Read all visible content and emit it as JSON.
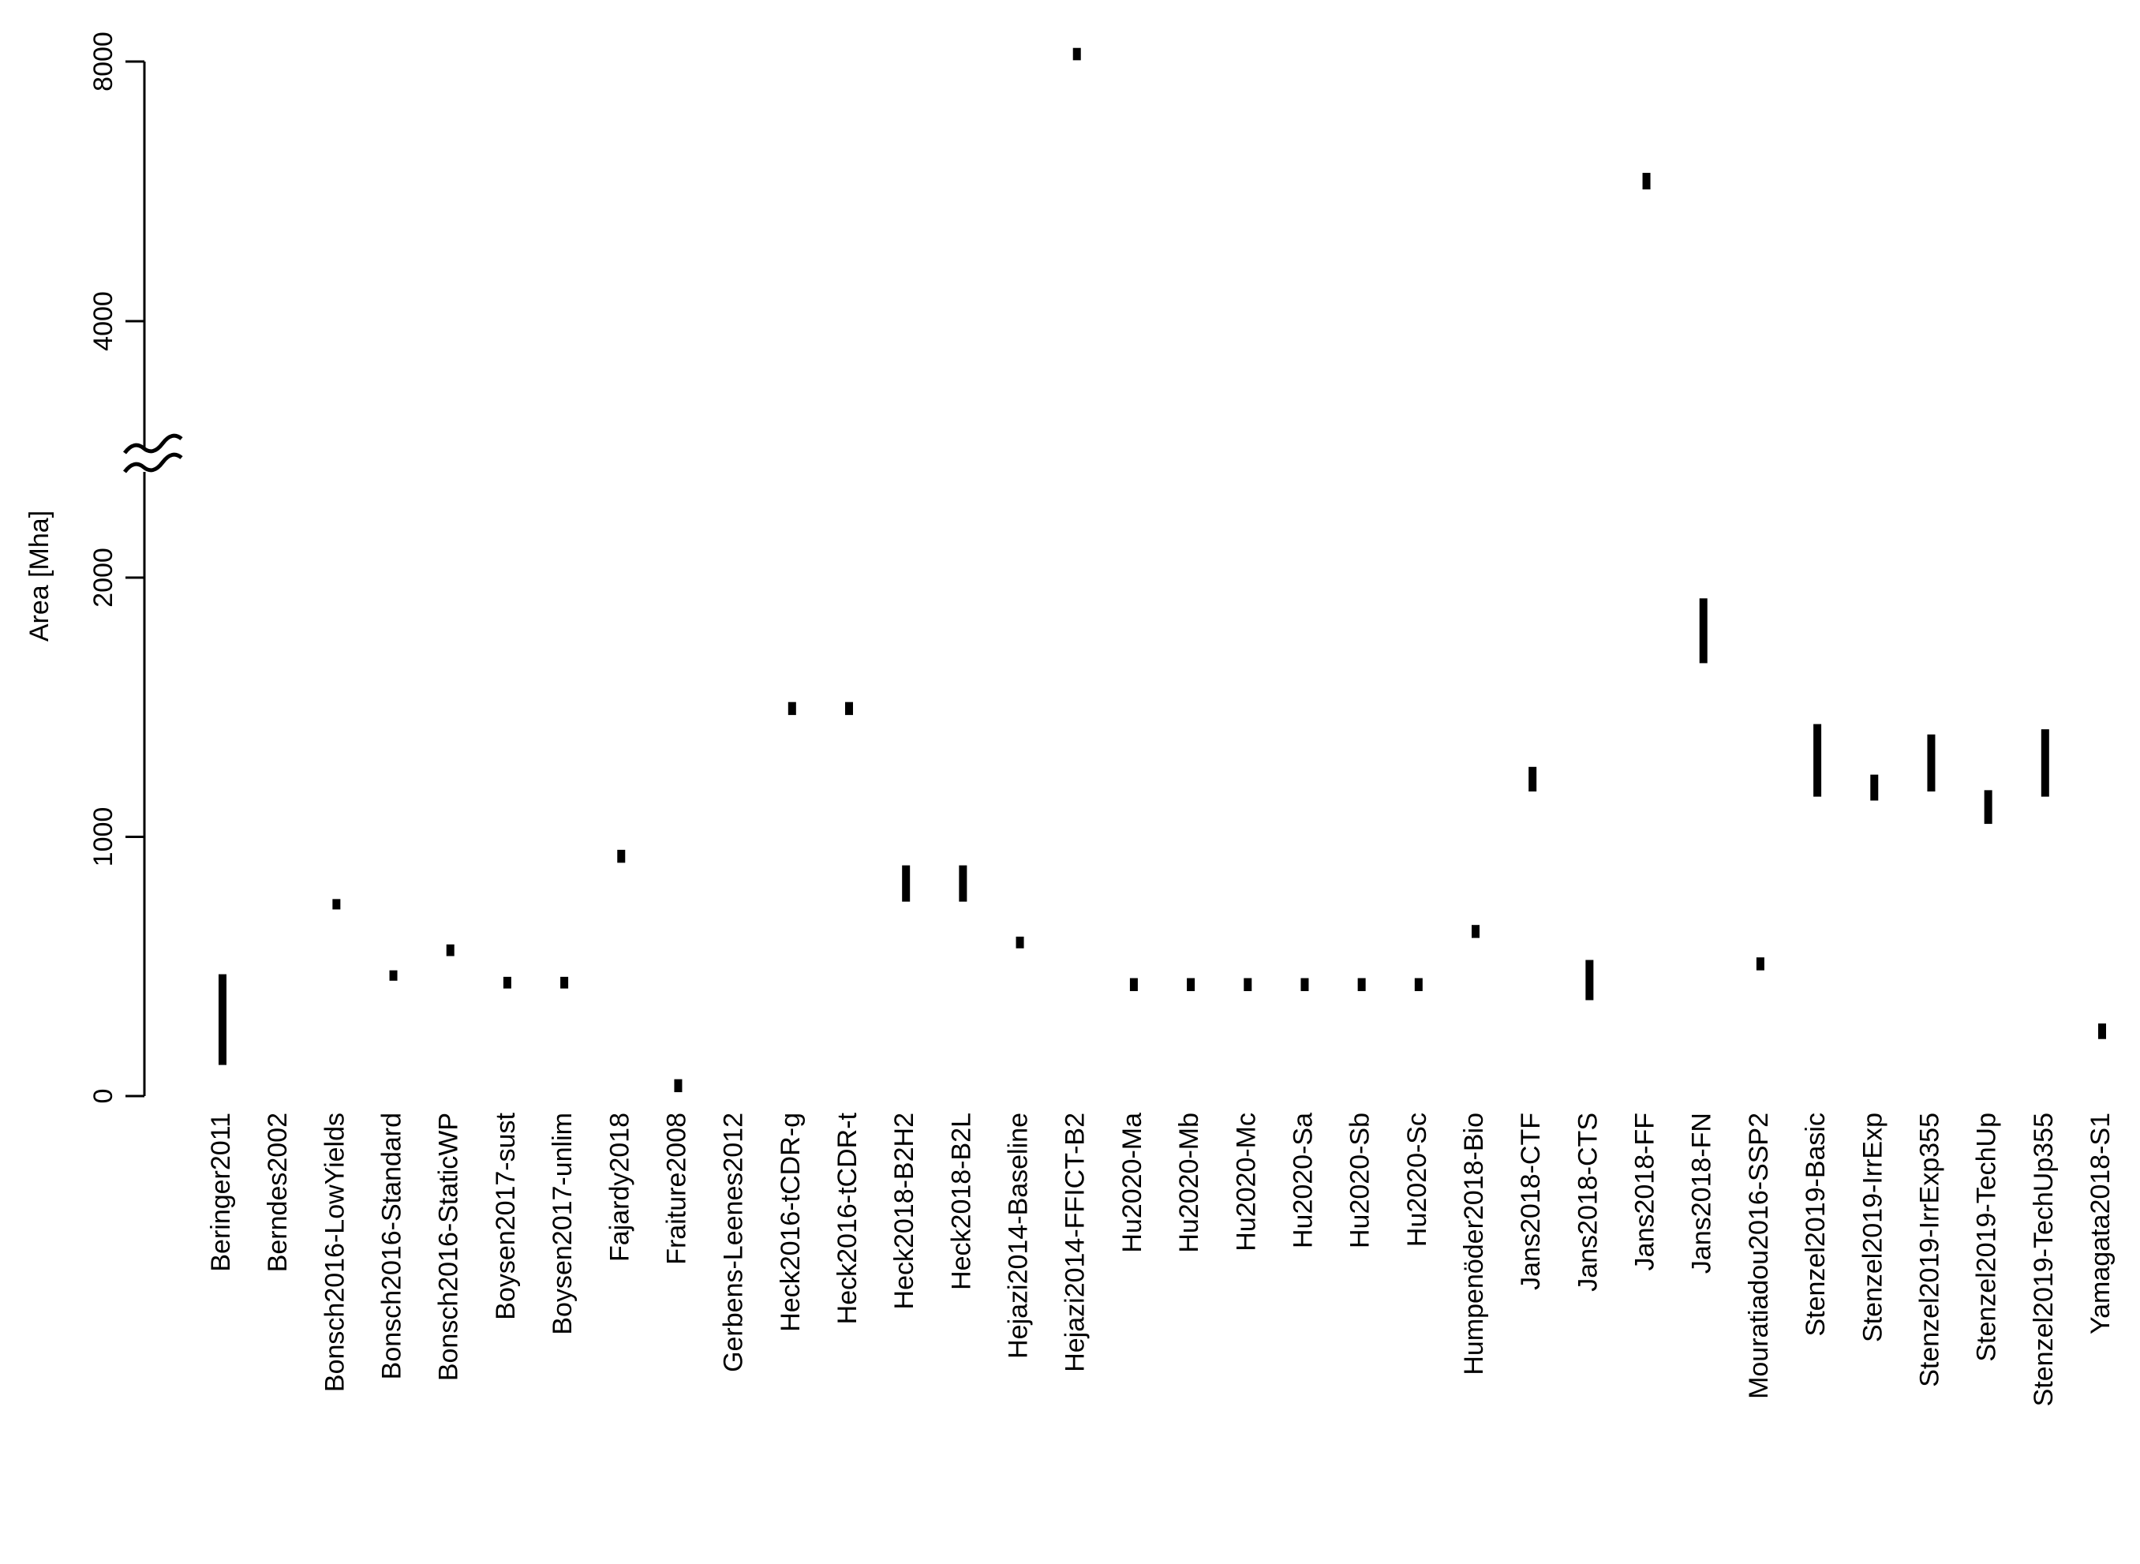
{
  "chart_data": {
    "type": "range",
    "y_label": "Area [Mha]",
    "categories": [
      "Beringer2011",
      "Berndes2002",
      "Bonsch2016-LowYields",
      "Bonsch2016-Standard",
      "Bonsch2016-StaticWP",
      "Boysen2017-sust",
      "Boysen2017-unlim",
      "Fajardy2018",
      "Fraiture2008",
      "Gerbens-Leenes2012",
      "Heck2016-tCDR-g",
      "Heck2016-tCDR-t",
      "Heck2018-B2H2",
      "Heck2018-B2L",
      "Hejazi2014-Baseline",
      "Hejazi2014-FFICT-B2",
      "Hu2020-Ma",
      "Hu2020-Mb",
      "Hu2020-Mc",
      "Hu2020-Sa",
      "Hu2020-Sb",
      "Hu2020-Sc",
      "Humpenöder2018-Bio",
      "Jans2018-CTF",
      "Jans2018-CTS",
      "Jans2018-FF",
      "Jans2018-FN",
      "Mouratiadou2016-SSP2",
      "Stenzel2019-Basic",
      "Stenzel2019-IrrExp",
      "Stenzel2019-IrrExp355",
      "Stenzel2019-TechUp",
      "Stenzel2019-TechUp355",
      "Yamagata2018-S1"
    ],
    "low": [
      120,
      null,
      720,
      445,
      540,
      415,
      415,
      900,
      15,
      null,
      1470,
      1470,
      750,
      750,
      570,
      8020,
      405,
      405,
      405,
      405,
      405,
      405,
      610,
      1175,
      370,
      6030,
      1670,
      485,
      1155,
      1140,
      1175,
      1050,
      1155,
      220
    ],
    "high": [
      470,
      null,
      760,
      485,
      585,
      460,
      460,
      950,
      65,
      null,
      1520,
      1520,
      890,
      890,
      615,
      8210,
      455,
      455,
      455,
      455,
      455,
      455,
      660,
      1270,
      525,
      6285,
      1920,
      535,
      1435,
      1240,
      1395,
      1180,
      1415,
      280
    ],
    "color": "#000000",
    "ylim": [
      0,
      8000
    ],
    "yticks": [
      0,
      1000,
      2000,
      4000,
      8000
    ],
    "y_break": [
      2000,
      4000
    ]
  }
}
